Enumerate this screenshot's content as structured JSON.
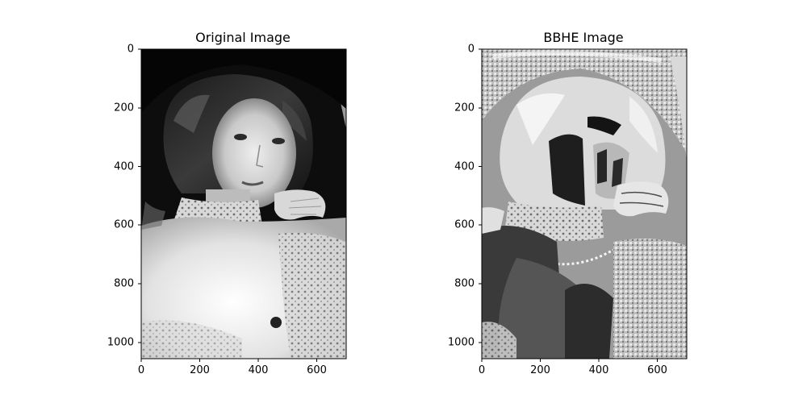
{
  "panels": [
    {
      "title": "Original Image",
      "x_ticks": [
        "0",
        "200",
        "400",
        "600"
      ],
      "y_ticks": [
        "0",
        "200",
        "400",
        "600",
        "800",
        "1000"
      ],
      "image_kind": "grayscale portrait photograph"
    },
    {
      "title": "BBHE Image",
      "x_ticks": [
        "0",
        "200",
        "400",
        "600"
      ],
      "y_ticks": [
        "0",
        "200",
        "400",
        "600",
        "800",
        "1000"
      ],
      "image_kind": "histogram-equalized grayscale portrait"
    }
  ]
}
